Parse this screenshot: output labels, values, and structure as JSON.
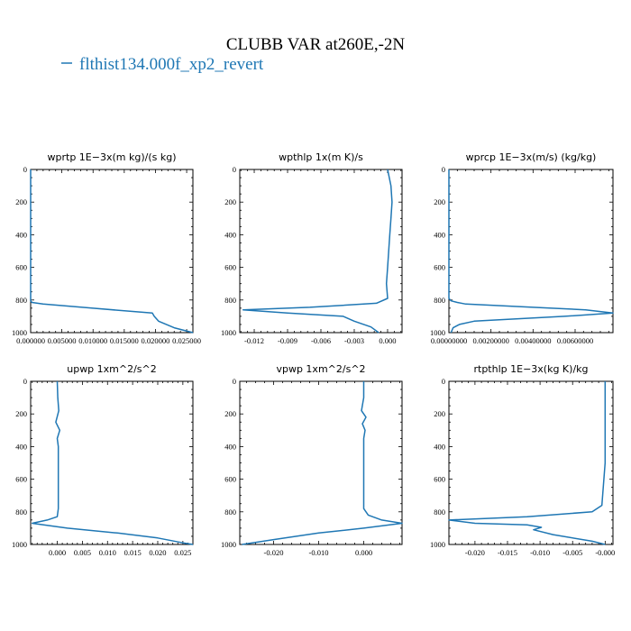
{
  "figure": {
    "title": "CLUBB VAR at260E,-2N",
    "legend_label": "flthist134.000f_xp2_revert",
    "line_color": "#1f77b4"
  },
  "chart_data": [
    {
      "type": "line",
      "title": "wprtp   1E−3x(m kg)/(s kg)",
      "xlim": [
        0,
        0.026
      ],
      "ylim": [
        0,
        1000
      ],
      "y_inverted": true,
      "xticks": [
        0,
        0.005,
        0.01,
        0.015,
        0.02,
        0.025
      ],
      "xtick_labels": [
        "0.000000",
        "0.005000",
        "0.010000",
        "0.015000",
        "0.020000",
        "0.025000"
      ],
      "yticks": [
        0,
        200,
        400,
        600,
        800,
        1000
      ],
      "ytick_labels": [
        "0",
        "200",
        "400",
        "600",
        "800",
        "1000"
      ],
      "series": [
        {
          "x": [
            0,
            0,
            0,
            0,
            0,
            0,
            0,
            0.0002,
            0.002,
            0.01,
            0.0195,
            0.0198,
            0.0205,
            0.023,
            0.026
          ],
          "y": [
            0,
            100,
            300,
            500,
            700,
            790,
            805,
            815,
            825,
            850,
            880,
            900,
            930,
            970,
            1000
          ]
        }
      ]
    },
    {
      "type": "line",
      "title": "wpthlp   1x(m K)/s",
      "xlim": [
        -0.0133,
        0.0013
      ],
      "ylim": [
        0,
        1000
      ],
      "y_inverted": true,
      "xticks": [
        -0.012,
        -0.009,
        -0.006,
        -0.003,
        0.0
      ],
      "xtick_labels": [
        "-0.012",
        "-0.009",
        "-0.006",
        "-0.003",
        "0.000"
      ],
      "yticks": [
        0,
        200,
        400,
        600,
        800,
        1000
      ],
      "ytick_labels": [
        "0",
        "200",
        "400",
        "600",
        "800",
        "1000"
      ],
      "series": [
        {
          "x": [
            0.0,
            0.0003,
            0.0004,
            0.0003,
            0.0002,
            0.0001,
            0.0,
            -0.0001,
            0.0,
            -0.001,
            -0.007,
            -0.013,
            -0.009,
            -0.004,
            -0.003,
            -0.0015,
            -0.0008
          ],
          "y": [
            0,
            100,
            200,
            300,
            400,
            500,
            600,
            700,
            790,
            820,
            845,
            860,
            880,
            900,
            930,
            965,
            1000
          ]
        }
      ]
    },
    {
      "type": "line",
      "title": "wprcp   1E−3x(m/s) (kg/kg)",
      "xlim": [
        0,
        0.0078
      ],
      "ylim": [
        0,
        1000
      ],
      "y_inverted": true,
      "xticks": [
        0,
        0.002,
        0.004,
        0.006
      ],
      "xtick_labels": [
        "0.00000000",
        "0.00200000",
        "0.00400000",
        "0.00600000"
      ],
      "yticks": [
        0,
        200,
        400,
        600,
        800,
        1000
      ],
      "ytick_labels": [
        "0",
        "200",
        "400",
        "600",
        "800",
        "1000"
      ],
      "series": [
        {
          "x": [
            0,
            0,
            0,
            0,
            0,
            0,
            0.0001,
            0.0004,
            0.0008,
            0.004,
            0.0065,
            0.0078,
            0.0055,
            0.0012,
            0.0005,
            0.0002,
            0.0001
          ],
          "y": [
            0,
            100,
            300,
            500,
            700,
            790,
            805,
            815,
            825,
            845,
            860,
            880,
            900,
            930,
            950,
            970,
            1000
          ]
        }
      ]
    },
    {
      "type": "line",
      "title": "upwp   1xm^2/s^2",
      "xlim": [
        -0.0053,
        0.027
      ],
      "ylim": [
        0,
        1000
      ],
      "y_inverted": true,
      "xticks": [
        0.0,
        0.005,
        0.01,
        0.015,
        0.02,
        0.025
      ],
      "xtick_labels": [
        "0.000",
        "0.005",
        "0.010",
        "0.015",
        "0.020",
        "0.025"
      ],
      "yticks": [
        0,
        200,
        400,
        600,
        800,
        1000
      ],
      "ytick_labels": [
        "0",
        "200",
        "400",
        "600",
        "800",
        "1000"
      ],
      "series": [
        {
          "x": [
            0.0,
            0.0001,
            0.0003,
            -0.0003,
            0.0005,
            0.0,
            0.0002,
            0.0002,
            0.0002,
            0.0,
            -0.002,
            -0.005,
            0.002,
            0.012,
            0.02,
            0.025,
            0.027
          ],
          "y": [
            0,
            100,
            180,
            250,
            300,
            350,
            400,
            600,
            780,
            830,
            850,
            870,
            900,
            930,
            960,
            990,
            1000
          ]
        }
      ]
    },
    {
      "type": "line",
      "title": "vpwp   1xm^2/s^2",
      "xlim": [
        -0.0275,
        0.0085
      ],
      "ylim": [
        0,
        1000
      ],
      "y_inverted": true,
      "xticks": [
        -0.02,
        -0.01,
        0.0
      ],
      "xtick_labels": [
        "-0.020",
        "-0.010",
        "0.000"
      ],
      "yticks": [
        0,
        200,
        400,
        600,
        800,
        1000
      ],
      "ytick_labels": [
        "0",
        "200",
        "400",
        "600",
        "800",
        "1000"
      ],
      "series": [
        {
          "x": [
            0.0,
            0.0,
            -0.0005,
            0.0005,
            -0.0003,
            0.0003,
            0.0,
            0.0,
            0.0,
            0.001,
            0.004,
            0.0085,
            0.0,
            -0.01,
            -0.02,
            -0.027
          ],
          "y": [
            0,
            100,
            180,
            220,
            260,
            300,
            350,
            600,
            780,
            820,
            850,
            870,
            900,
            930,
            970,
            1000
          ]
        }
      ]
    },
    {
      "type": "line",
      "title": "rtpthlp   1E−3x(kg K)/kg",
      "xlim": [
        -0.024,
        0.0012
      ],
      "ylim": [
        0,
        1000
      ],
      "y_inverted": true,
      "xticks": [
        -0.02,
        -0.015,
        -0.01,
        -0.005,
        0.0
      ],
      "xtick_labels": [
        "-0.020",
        "-0.015",
        "-0.010",
        "-0.005",
        "-0.000"
      ],
      "yticks": [
        0,
        200,
        400,
        600,
        800,
        1000
      ],
      "ytick_labels": [
        "0",
        "200",
        "400",
        "600",
        "800",
        "1000"
      ],
      "series": [
        {
          "x": [
            0.0,
            0.0,
            0.0,
            -0.0005,
            -0.002,
            -0.012,
            -0.024,
            -0.02,
            -0.012,
            -0.0098,
            -0.011,
            -0.008,
            -0.002,
            0.0
          ],
          "y": [
            0,
            200,
            500,
            760,
            800,
            830,
            850,
            870,
            880,
            895,
            910,
            940,
            980,
            1000
          ]
        }
      ]
    }
  ]
}
